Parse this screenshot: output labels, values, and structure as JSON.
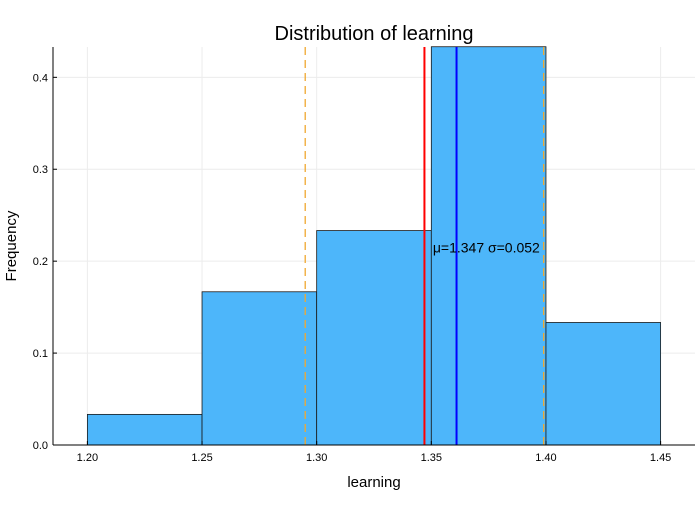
{
  "chart_data": {
    "type": "bar",
    "title": "Distribution of learning",
    "xlabel": "learning",
    "ylabel": "Frequency",
    "xlim": [
      1.185,
      1.465
    ],
    "ylim": [
      0,
      0.433
    ],
    "x_ticks": [
      "1.20",
      "1.25",
      "1.30",
      "1.35",
      "1.40",
      "1.45"
    ],
    "y_ticks": [
      "0.0",
      "0.1",
      "0.2",
      "0.3",
      "0.4"
    ],
    "bins": [
      {
        "start": 1.2,
        "end": 1.25,
        "value": 0.0333
      },
      {
        "start": 1.25,
        "end": 1.3,
        "value": 0.1667
      },
      {
        "start": 1.3,
        "end": 1.35,
        "value": 0.2333
      },
      {
        "start": 1.35,
        "end": 1.4,
        "value": 0.4333
      },
      {
        "start": 1.4,
        "end": 1.45,
        "value": 0.1333
      }
    ],
    "reference_lines": [
      {
        "x": 1.347,
        "color": "#ff0000",
        "style": "solid"
      },
      {
        "x": 1.361,
        "color": "#0000ff",
        "style": "solid"
      },
      {
        "x": 1.295,
        "color": "#f0a830",
        "style": "dashed"
      },
      {
        "x": 1.399,
        "color": "#f0a830",
        "style": "dashed"
      }
    ],
    "annotation": {
      "text": "μ=1.347 σ=0.052",
      "x": 1.374,
      "y": 0.215
    },
    "grid": true,
    "legend": "none",
    "colors": {
      "bar_fill": "#4db6fa",
      "bar_stroke": "#1a1a1a",
      "grid": "#ececec"
    }
  }
}
